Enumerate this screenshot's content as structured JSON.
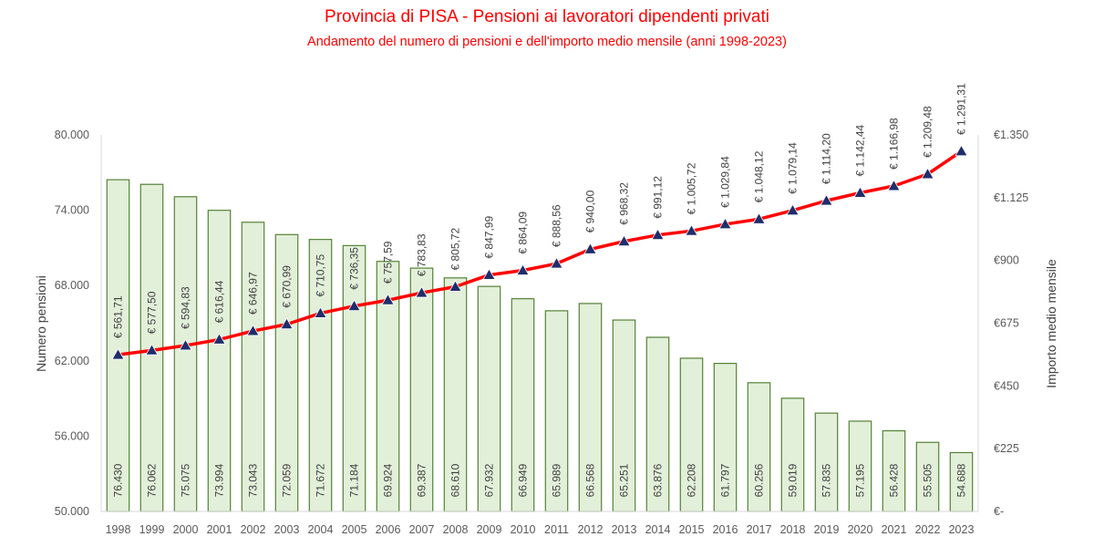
{
  "chart_data": {
    "type": "bar+line",
    "title": "Provincia di PISA - Pensioni ai lavoratori dipendenti privati",
    "subtitle": "Andamento del numero di pensioni e dell'importo medio mensile (anni 1998-2023)",
    "categories": [
      "1998",
      "1999",
      "2000",
      "2001",
      "2002",
      "2003",
      "2004",
      "2005",
      "2006",
      "2007",
      "2008",
      "2009",
      "2010",
      "2011",
      "2012",
      "2013",
      "2014",
      "2015",
      "2016",
      "2017",
      "2018",
      "2019",
      "2020",
      "2021",
      "2022",
      "2023"
    ],
    "series": [
      {
        "type": "bar",
        "axis": "left",
        "values": [
          76430,
          76062,
          75075,
          73994,
          73043,
          72059,
          71672,
          71184,
          69924,
          69387,
          68610,
          67932,
          66949,
          65989,
          66568,
          65251,
          63876,
          62208,
          61797,
          60256,
          59019,
          57835,
          57195,
          56428,
          55505,
          54688
        ],
        "labels": [
          "76.430",
          "76.062",
          "75.075",
          "73.994",
          "73.043",
          "72.059",
          "71.672",
          "71.184",
          "69.924",
          "69.387",
          "68.610",
          "67.932",
          "66.949",
          "65.989",
          "66.568",
          "65.251",
          "63.876",
          "62.208",
          "61.797",
          "60.256",
          "59.019",
          "57.835",
          "57.195",
          "56.428",
          "55.505",
          "54.688"
        ],
        "color": "#e2efd9",
        "border_color": "#548235"
      },
      {
        "type": "line",
        "axis": "right",
        "values": [
          561.71,
          577.5,
          594.83,
          616.44,
          646.97,
          670.99,
          710.75,
          736.35,
          757.59,
          783.83,
          805.72,
          847.99,
          864.09,
          888.56,
          940.0,
          968.32,
          991.12,
          1005.72,
          1029.84,
          1048.12,
          1079.14,
          1114.2,
          1142.44,
          1166.98,
          1209.48,
          1291.31
        ],
        "labels": [
          "€ 561,71",
          "€ 577,50",
          "€ 594,83",
          "€ 616,44",
          "€ 646,97",
          "€ 670,99",
          "€ 710,75",
          "€ 736,35",
          "€ 757,59",
          "€ 783,83",
          "€ 805,72",
          "€ 847,99",
          "€ 864,09",
          "€ 888,56",
          "€ 940,00",
          "€ 968,32",
          "€ 991,12",
          "€ 1.005,72",
          "€ 1.029,84",
          "€ 1.048,12",
          "€ 1.079,14",
          "€ 1.114,20",
          "€ 1.142,44",
          "€ 1.166,98",
          "€ 1.209,48",
          "€ 1.291,31"
        ],
        "color": "#ff0000",
        "marker_color": "#1f2d6b"
      }
    ],
    "ylabel": "Numero pensioni",
    "ylim": [
      50000,
      80000
    ],
    "yticks": [
      50000,
      56000,
      62000,
      68000,
      74000,
      80000
    ],
    "ytick_labels": [
      "50.000",
      "56.000",
      "62.000",
      "68.000",
      "74.000",
      "80.000"
    ],
    "y2label": "Importo medio mensile",
    "y2lim": [
      0,
      1350
    ],
    "y2ticks": [
      0,
      225,
      450,
      675,
      900,
      1125,
      1350
    ],
    "y2tick_labels": [
      "€-",
      "€225",
      "€450",
      "€675",
      "€900",
      "€1.125",
      "€1.350"
    ],
    "grid": false
  }
}
